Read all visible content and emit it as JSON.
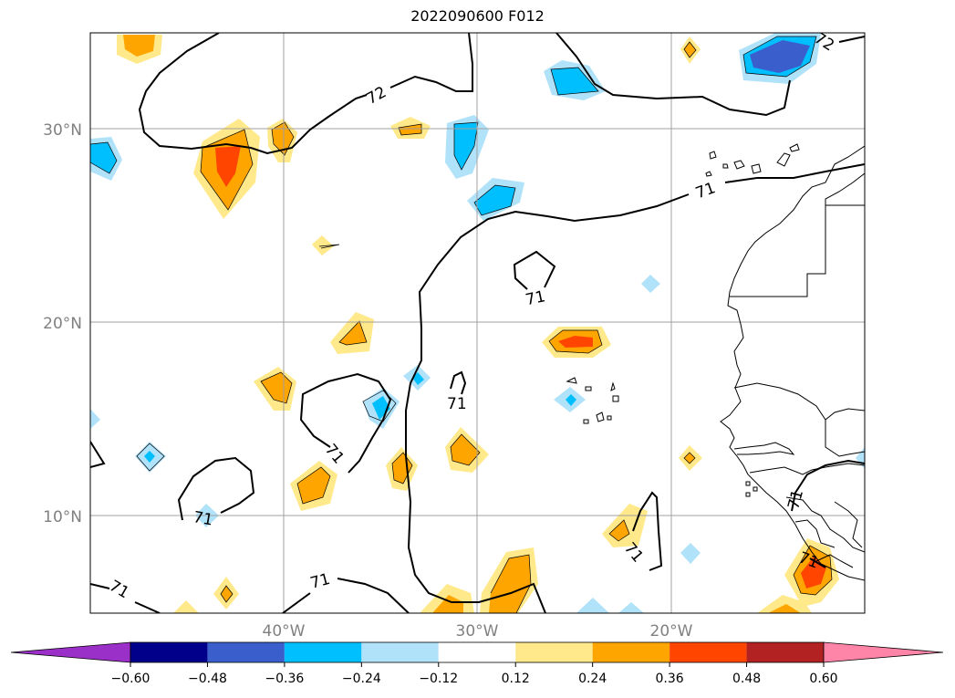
{
  "title": "2022090600 F012",
  "map": {
    "lon_range": [
      -50,
      -10
    ],
    "lat_range": [
      5,
      35
    ],
    "lat_ticks": [
      {
        "value": 30,
        "label": "30°N"
      },
      {
        "value": 20,
        "label": "20°N"
      },
      {
        "value": 10,
        "label": "10°N"
      }
    ],
    "lon_ticks": [
      {
        "value": -40,
        "label": "40°W"
      },
      {
        "value": -30,
        "label": "30°W"
      },
      {
        "value": -20,
        "label": "20°W"
      }
    ],
    "grid": true,
    "contour_labels": [
      "72",
      "72",
      "71",
      "71",
      "71",
      "71",
      "71",
      "71",
      "71",
      "71",
      "71",
      "71",
      "71"
    ]
  },
  "colorbar": {
    "orientation": "horizontal",
    "extend": "both",
    "tick_labels": [
      "−0.60",
      "−0.48",
      "−0.36",
      "−0.24",
      "−0.12",
      "0.12",
      "0.24",
      "0.36",
      "0.48",
      "0.60"
    ],
    "colors": [
      "#9b30c8",
      "#00008b",
      "#3a5fcd",
      "#00bfff",
      "#b0e2fa",
      "#ffffff",
      "#ffe98a",
      "#ffa500",
      "#ff4500",
      "#b22222",
      "#ff85a8"
    ],
    "extend_min_color": "#9b30c8",
    "extend_max_color": "#ff85a8"
  }
}
